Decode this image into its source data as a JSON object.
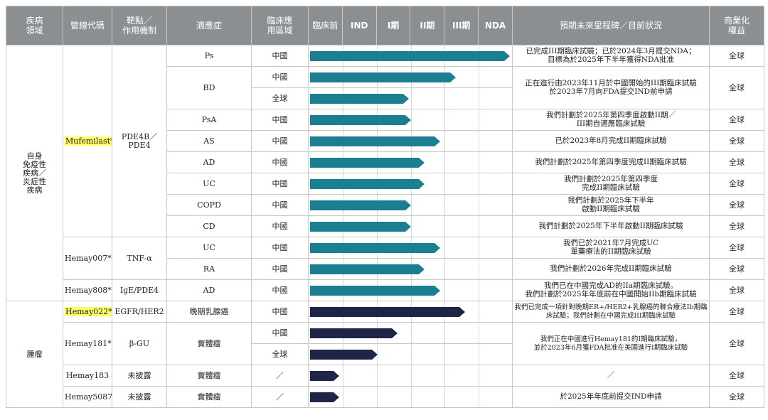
{
  "headers": {
    "domain": "疾病\n領域",
    "code": "管線代碼",
    "target": "靶點／\n作用機制",
    "indication": "適應症",
    "region": "臨床應\n用區域",
    "stages": [
      "臨床前",
      "IND",
      "I期",
      "II期",
      "III期",
      "NDA"
    ],
    "milestone": "預期未來里程碑／目前狀況",
    "rights": "商業化\n權益"
  },
  "domains": [
    "自身\n免疫性\n疾病／\n炎症性\n疾病",
    "腫瘤"
  ],
  "drugs": {
    "mufemilast": {
      "code": "Mufemilast**",
      "target": "PDE4B／\nPDE4"
    },
    "hemay007": {
      "code": "Hemay007*",
      "target": "TNF-α"
    },
    "hemay808": {
      "code": "Hemay808*",
      "target": "IgE/PDE4"
    },
    "hemay022": {
      "code": "Hemay022**",
      "target": "EGFR/HER2"
    },
    "hemay181": {
      "code": "Hemay181*",
      "target": "β-GU"
    },
    "hemay183": {
      "code": "Hemay183",
      "target": "未披露"
    },
    "hemay5087": {
      "code": "Hemay5087",
      "target": "未披露"
    }
  },
  "rows": [
    {
      "indication": "Ps",
      "region": "中國",
      "progress": 1.0,
      "color": "teal",
      "milestone": "已完成III期臨床試驗；已於2024年3月提交NDA；\n目標為於2025年下半年獲得NDA批准",
      "rights": "全球"
    },
    {
      "indication": "BD",
      "region": "中國",
      "progress": 0.72,
      "color": "teal",
      "milestone": "正在進行由2023年11月於中國開始的III期臨床試驗\n於2023年7月向FDA提交IND前申請",
      "rights": "全球"
    },
    {
      "indication": "",
      "region": "全球",
      "progress": 0.48,
      "color": "teal",
      "milestone": "",
      "rights": ""
    },
    {
      "indication": "PsA",
      "region": "中國",
      "progress": 0.49,
      "color": "teal",
      "milestone": "我們計劃於2025年第四季度啟動II期／\nIII期自適應臨床試驗",
      "rights": "全球"
    },
    {
      "indication": "AS",
      "region": "中國",
      "progress": 0.64,
      "color": "teal",
      "milestone": "已於2023年8月完成II期臨床試驗",
      "rights": "全球"
    },
    {
      "indication": "AD",
      "region": "中國",
      "progress": 0.56,
      "color": "teal",
      "milestone": "我們計劃於2025年第四季度完成II期臨床試驗",
      "rights": "全球"
    },
    {
      "indication": "UC",
      "region": "中國",
      "progress": 0.56,
      "color": "teal",
      "milestone": "我們計劃於2025年第四季度\n完成II期臨床試驗",
      "rights": "全球"
    },
    {
      "indication": "COPD",
      "region": "中國",
      "progress": 0.49,
      "color": "teal",
      "milestone": "我們計劃於2025年下半年\n啟動II期臨床試驗",
      "rights": "全球"
    },
    {
      "indication": "CD",
      "region": "中國",
      "progress": 0.49,
      "color": "teal",
      "milestone": "我們計劃於2025年下半年啟動II期臨床試驗",
      "rights": "全球"
    },
    {
      "indication": "UC",
      "region": "中國",
      "progress": 0.64,
      "color": "teal",
      "milestone": "我們已於2021年7月完成UC\n單藥療法的II期臨床試驗",
      "rights": "全球"
    },
    {
      "indication": "RA",
      "region": "中國",
      "progress": 0.56,
      "color": "teal",
      "milestone": "我們計劃於2026年完成II期臨床試驗",
      "rights": "全球"
    },
    {
      "indication": "AD",
      "region": "中國",
      "progress": 0.64,
      "color": "teal",
      "milestone": "我們已在中國完成AD的IIa期臨床試驗。\n我們計劃於2025年年底前在中國開始IIb期臨床試驗",
      "rights": "全球"
    },
    {
      "indication": "晚期乳腺癌",
      "region": "中國",
      "progress": 0.77,
      "color": "navy",
      "milestone": "我們已完成一項針對晚期ER+/HER2+乳腺癌的聯合療法Ib期臨\n床試驗；我們計劃在中國完成III期臨床試驗",
      "rights": "全球"
    },
    {
      "indication": "實體瘤",
      "region": "中國",
      "progress": 0.42,
      "color": "navy",
      "milestone": "我們正在中國進行Hemay181的I期臨床試驗，\n並於2023年6月獲FDA批准在美國進行I期臨床試驗",
      "rights": "全球"
    },
    {
      "indication": "",
      "region": "全球",
      "progress": 0.32,
      "color": "navy",
      "milestone": "",
      "rights": ""
    },
    {
      "indication": "實體瘤",
      "region": "／",
      "progress": 0.12,
      "color": "navy",
      "milestone": "／",
      "rights": "全球"
    },
    {
      "indication": "實體瘤",
      "region": "／",
      "progress": 0.12,
      "color": "navy",
      "milestone": "於2025年年底前提交IND申請",
      "rights": "全球"
    }
  ]
}
